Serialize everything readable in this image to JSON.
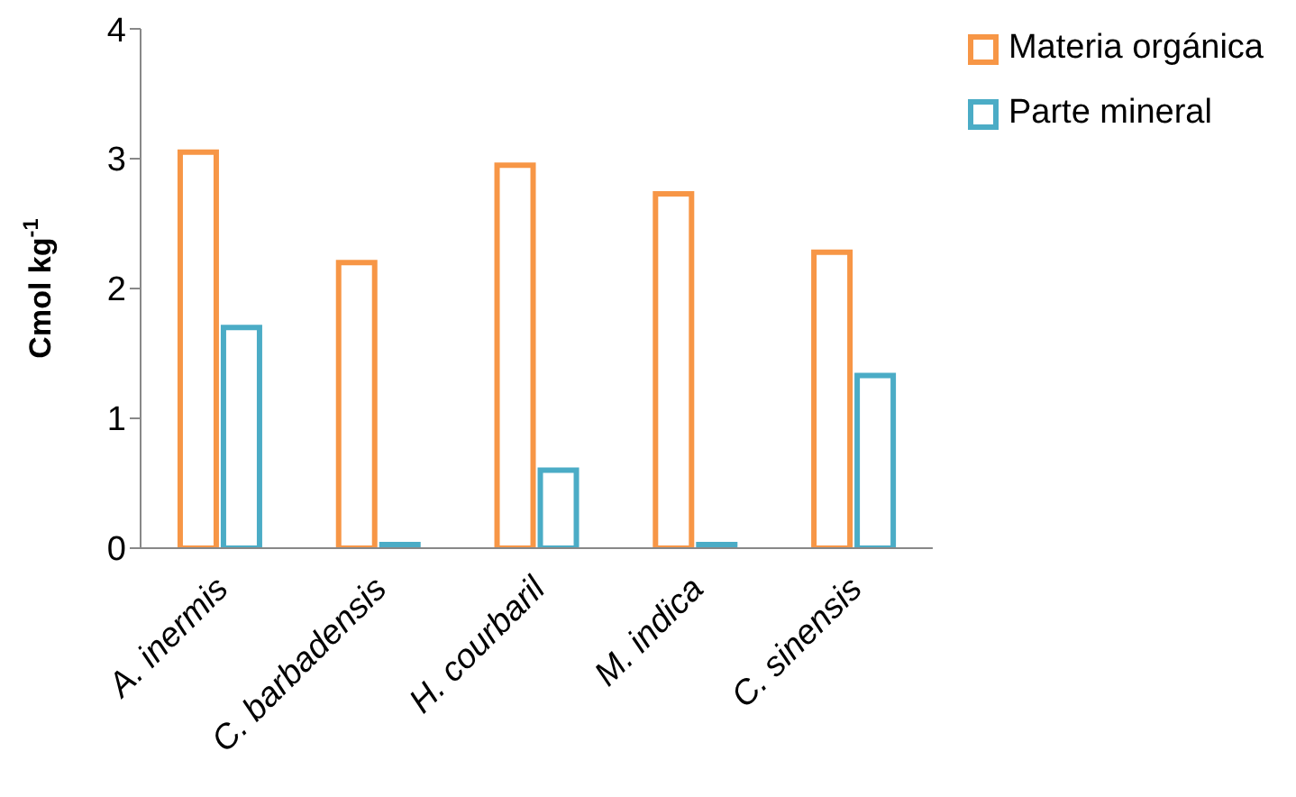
{
  "chart_data": {
    "type": "bar",
    "ylabel": "Cmol kg$^{-1}$",
    "categories": [
      "A. inermis",
      "C. barbadensis",
      "H. courbaril",
      "M. indica",
      "C. sinensis"
    ],
    "series": [
      {
        "name": "Materia orgánica",
        "color": "#f79646",
        "values": [
          3.05,
          2.2,
          2.95,
          2.73,
          2.28
        ]
      },
      {
        "name": "Parte mineral",
        "color": "#4bacc6",
        "values": [
          1.7,
          0,
          0.6,
          0,
          1.33
        ]
      }
    ],
    "ylim": [
      0,
      4
    ],
    "yticks": [
      0,
      1,
      2,
      3,
      4
    ],
    "legend": "top right"
  }
}
